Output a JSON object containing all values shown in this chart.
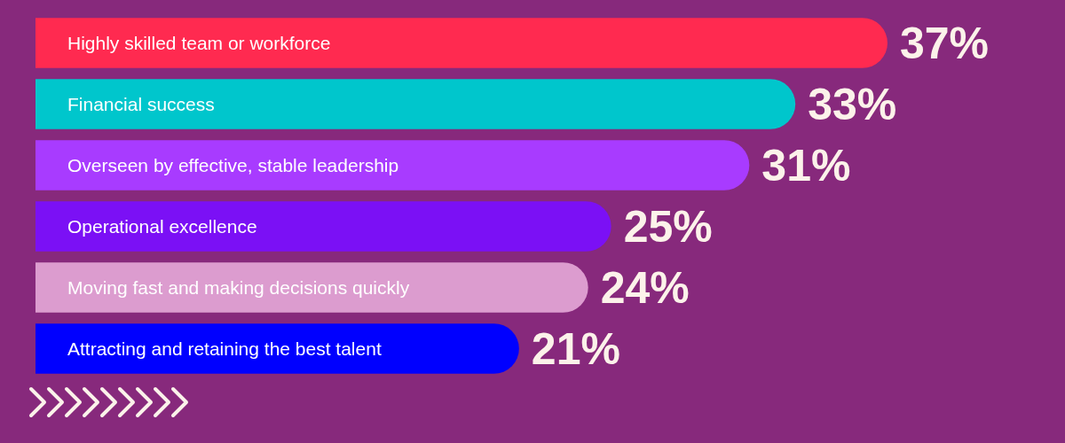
{
  "chart_data": {
    "type": "bar",
    "orientation": "horizontal",
    "categories": [
      "Highly skilled team or workforce",
      "Financial success",
      "Overseen by effective, stable leadership",
      "Operational excellence",
      "Moving fast and making decisions quickly",
      "Attracting and retaining the best talent"
    ],
    "values": [
      37,
      33,
      31,
      25,
      24,
      21
    ],
    "value_labels": [
      "37%",
      "33%",
      "31%",
      "25%",
      "24%",
      "21%"
    ],
    "colors": [
      "#ff2a50",
      "#00c6cc",
      "#a83bff",
      "#7b10f5",
      "#dc9ccf",
      "#0000ff"
    ]
  }
}
